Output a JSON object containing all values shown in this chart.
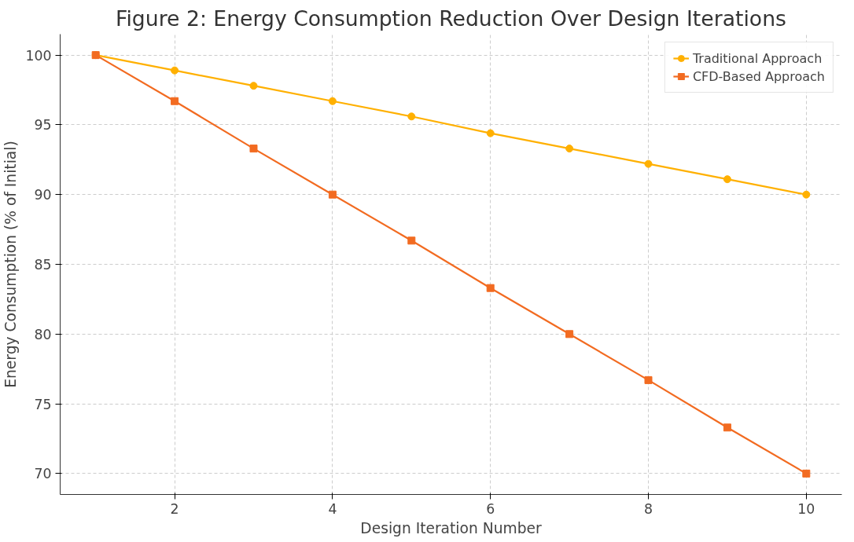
{
  "chart_data": {
    "type": "line",
    "title": "Figure 2: Energy Consumption Reduction Over Design Iterations",
    "xlabel": "Design Iteration Number",
    "ylabel": "Energy Consumption (% of Initial)",
    "x": [
      1,
      2,
      3,
      4,
      5,
      6,
      7,
      8,
      9,
      10
    ],
    "series": [
      {
        "name": "Traditional Approach",
        "color": "#ffb000",
        "marker": "circle",
        "values": [
          100,
          98.9,
          97.8,
          96.7,
          95.6,
          94.4,
          93.3,
          92.2,
          91.1,
          90
        ]
      },
      {
        "name": "CFD-Based Approach",
        "color": "#f26b21",
        "marker": "square",
        "values": [
          100,
          96.7,
          93.3,
          90,
          86.7,
          83.3,
          80,
          76.7,
          73.3,
          70
        ]
      }
    ],
    "xlim": [
      0.55,
      10.45
    ],
    "ylim": [
      68.5,
      101.5
    ],
    "xticks": [
      2,
      4,
      6,
      8,
      10
    ],
    "yticks": [
      70,
      75,
      80,
      85,
      90,
      95,
      100
    ],
    "grid": true,
    "legend": "top right",
    "line_style": "solid"
  }
}
